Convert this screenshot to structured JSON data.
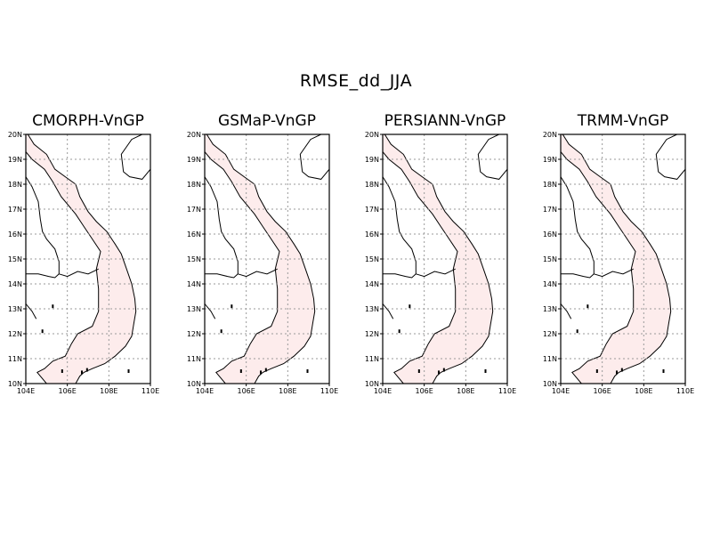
{
  "figure": {
    "title": "RMSE_dd_JJA",
    "panels": [
      {
        "title": "CMORPH-VnGP"
      },
      {
        "title": "GSMaP-VnGP"
      },
      {
        "title": "PERSIANN-VnGP"
      },
      {
        "title": "TRMM-VnGP"
      }
    ],
    "x_ticks": [
      "104E",
      "106E",
      "108E",
      "110E"
    ],
    "y_ticks": [
      "10N",
      "11N",
      "12N",
      "13N",
      "14N",
      "15N",
      "16N",
      "17N",
      "18N",
      "19N",
      "20N"
    ],
    "lon_range": [
      104,
      110
    ],
    "lat_range": [
      10,
      20
    ],
    "colors": {
      "land_fill": "#fdecec",
      "coastline": "#000000",
      "grid": "#9a9a9a"
    }
  }
}
